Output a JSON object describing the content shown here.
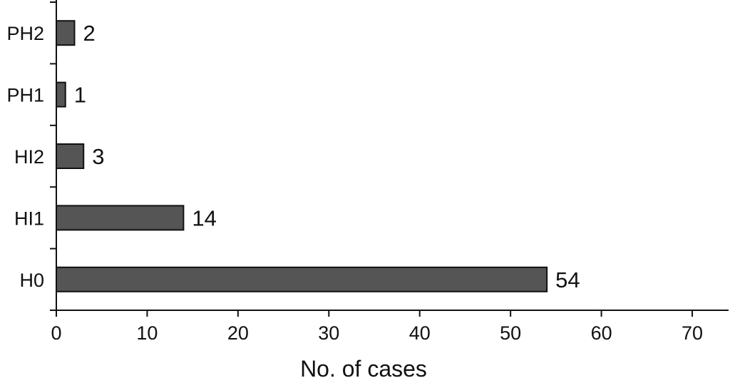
{
  "chart_data": {
    "type": "bar",
    "orientation": "horizontal",
    "categories": [
      "PH2",
      "PH1",
      "HI2",
      "HI1",
      "H0"
    ],
    "values": [
      2,
      1,
      3,
      14,
      54
    ],
    "xlabel": "No. of cases",
    "ylabel": "",
    "xlim": [
      0,
      74
    ],
    "xticks": [
      0,
      10,
      20,
      30,
      40,
      50,
      60,
      70
    ],
    "grid": false,
    "legend": "none",
    "bar_color": "#555555",
    "bar_edge_color": "#111111"
  }
}
